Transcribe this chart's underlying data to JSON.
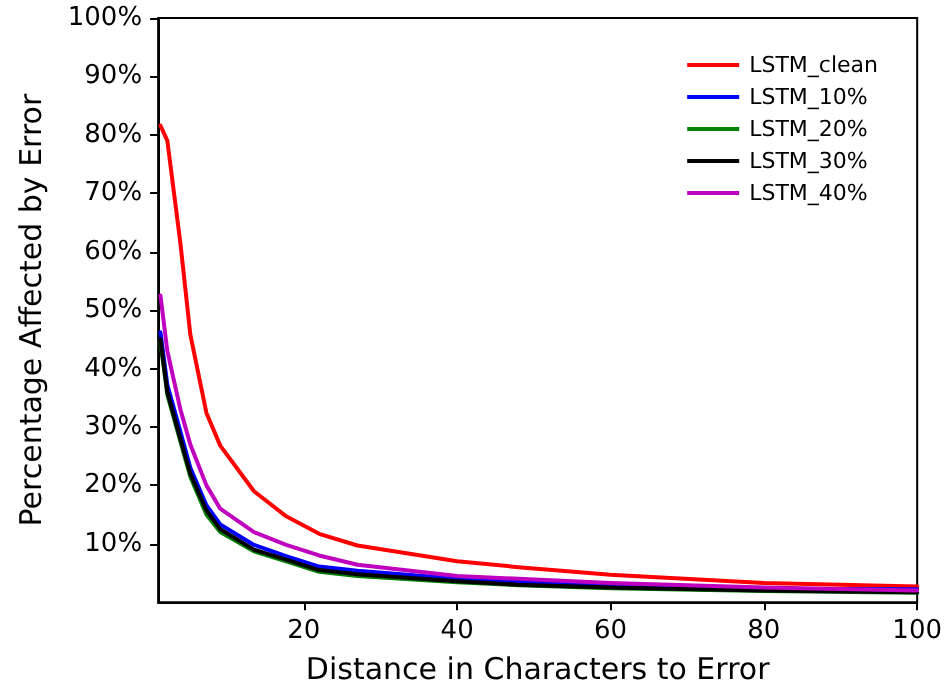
{
  "chart_data": {
    "type": "line",
    "xlabel": "Distance in Characters to Error",
    "ylabel": "Percentage Affected by Error",
    "xlim": [
      1,
      100
    ],
    "xticks": [
      20,
      40,
      60,
      80,
      100
    ],
    "ylim": [
      0,
      100
    ],
    "yticks": [
      {
        "value": 10,
        "label": "10%"
      },
      {
        "value": 20,
        "label": "20%"
      },
      {
        "value": 30,
        "label": "30%"
      },
      {
        "value": 40,
        "label": "40%"
      },
      {
        "value": 50,
        "label": "50%"
      },
      {
        "value": 60,
        "label": "60%"
      },
      {
        "value": 70,
        "label": "70%"
      },
      {
        "value": 80,
        "label": "80%"
      },
      {
        "value": 90,
        "label": "90%"
      },
      {
        "value": 100,
        "label": "100%"
      }
    ],
    "grid": false,
    "legend": "top right",
    "marker": "none",
    "line_style": "solid",
    "x": [
      1.3,
      2.2,
      3.9,
      5.2,
      7.3,
      9.1,
      13.5,
      17.7,
      22,
      27,
      40,
      48,
      60,
      80,
      100
    ],
    "series": [
      {
        "name": "LSTM_clean",
        "color": "#ff0000",
        "values": [
          81.6,
          79,
          61.5,
          45.8,
          32.4,
          26.8,
          19,
          14.7,
          11.7,
          9.7,
          7,
          6,
          4.7,
          3.3,
          2.7
        ]
      },
      {
        "name": "LSTM_10%",
        "color": "#0000ff",
        "values": [
          46.2,
          37.2,
          29.2,
          23,
          16.6,
          13.3,
          9.8,
          7.9,
          6.1,
          5.4,
          4,
          3.5,
          3,
          2.3,
          2.2
        ]
      },
      {
        "name": "LSTM_20%",
        "color": "#008000",
        "values": [
          44.5,
          35.5,
          27.5,
          21.5,
          15,
          12,
          8.7,
          7,
          5.2,
          4.5,
          3.4,
          2.9,
          2.4,
          1.9,
          1.6
        ]
      },
      {
        "name": "LSTM_30%",
        "color": "#000000",
        "values": [
          45,
          36,
          28,
          22,
          15.7,
          12.5,
          9,
          7.3,
          5.5,
          4.8,
          3.6,
          3,
          2.5,
          2,
          1.7
        ]
      },
      {
        "name": "LSTM_40%",
        "color": "#bf00bf",
        "values": [
          52.5,
          43,
          33,
          27,
          20,
          16,
          12,
          9.8,
          8,
          6.4,
          4.5,
          4,
          3.3,
          2.5,
          2
        ]
      }
    ]
  }
}
